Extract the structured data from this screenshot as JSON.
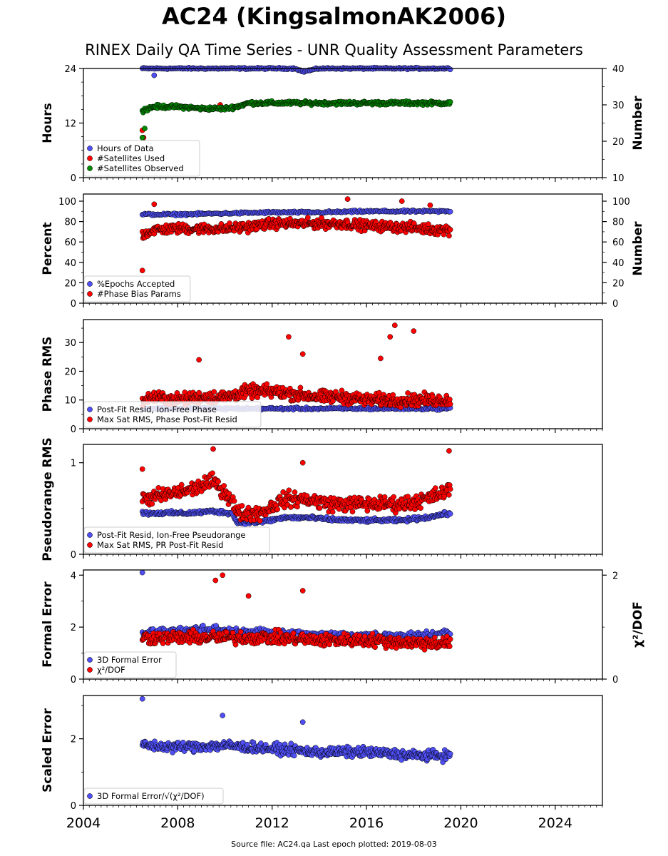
{
  "figure": {
    "title": "AC24 (KingsalmonAK2006)",
    "subtitle": "RINEX Daily QA Time Series - UNR Quality Assessment Parameters",
    "source": "Source file: AC24.qa Last epoch plotted: 2019-08-03"
  },
  "colors": {
    "blue": "#4f4ff5",
    "red": "#ff0000",
    "green": "#008a00"
  },
  "chart_data": [
    {
      "type": "scatter",
      "ylabel": "Hours",
      "ylabel_right": "Number",
      "ylim": [
        0,
        24
      ],
      "yticks": [
        0,
        12,
        24
      ],
      "ylim_right": [
        10,
        40
      ],
      "yticks_right": [
        10,
        20,
        30,
        40
      ],
      "legend": "lower-left",
      "series": [
        {
          "name": "Hours of Data",
          "color": "blue",
          "axis": "left",
          "x": [
            2006.5,
            2007.0,
            2008.0,
            2009.0,
            2010.0,
            2011.0,
            2012.0,
            2013.0,
            2013.3,
            2014.0,
            2015.0,
            2016.0,
            2017.0,
            2018.0,
            2019.0,
            2019.55
          ],
          "y": [
            24,
            24,
            24,
            24,
            24,
            24,
            24,
            24,
            23.3,
            24,
            24,
            24,
            24,
            24,
            24,
            24
          ],
          "outliers": [
            [
              2007.0,
              22.5
            ]
          ]
        },
        {
          "name": "#Satellites Used",
          "color": "red",
          "axis": "right",
          "x": [
            2006.5,
            2006.55,
            2009.8
          ],
          "y": [
            23,
            21,
            30
          ]
        },
        {
          "name": "#Satellites Observed",
          "color": "green",
          "axis": "right",
          "x": [
            2006.5,
            2007.0,
            2008.0,
            2009.0,
            2010.0,
            2010.5,
            2011.0,
            2012.0,
            2013.0,
            2014.0,
            2015.0,
            2016.0,
            2017.0,
            2018.0,
            2019.0,
            2019.55
          ],
          "y": [
            28.5,
            29.5,
            29.5,
            29,
            29,
            29.5,
            30.5,
            30.5,
            30.5,
            30.5,
            30.5,
            30.5,
            30.5,
            30.5,
            30.5,
            30.5
          ],
          "outliers": [
            [
              2006.5,
              21
            ],
            [
              2006.6,
              23.5
            ]
          ]
        }
      ]
    },
    {
      "type": "scatter",
      "ylabel": "Percent",
      "ylabel_right": "Number",
      "ylim": [
        0,
        107
      ],
      "yticks": [
        0,
        20,
        40,
        60,
        80,
        100
      ],
      "ylim_right": [
        0,
        107
      ],
      "yticks_right": [
        0,
        20,
        40,
        60,
        80,
        100
      ],
      "legend": "lower-left",
      "series": [
        {
          "name": "%Epochs Accepted",
          "color": "blue",
          "x": [
            2006.5,
            2008.0,
            2010.0,
            2012.0,
            2014.0,
            2016.0,
            2018.0,
            2019.55
          ],
          "y": [
            87,
            87,
            88,
            89,
            89,
            90,
            90,
            90
          ]
        },
        {
          "name": "#Phase Bias Params",
          "color": "red",
          "x": [
            2006.5,
            2007.0,
            2008.0,
            2009.0,
            2010.0,
            2011.0,
            2012.0,
            2013.0,
            2014.0,
            2015.0,
            2016.0,
            2017.0,
            2018.0,
            2019.0,
            2019.55
          ],
          "y": [
            67,
            72,
            73,
            73,
            73,
            75,
            78,
            78,
            78,
            78,
            76,
            75,
            74,
            72,
            72
          ],
          "outliers": [
            [
              2006.5,
              32
            ],
            [
              2007.0,
              97
            ],
            [
              2015.2,
              102
            ],
            [
              2017.5,
              100
            ],
            [
              2018.7,
              96
            ]
          ]
        }
      ]
    },
    {
      "type": "scatter",
      "ylabel": "Phase RMS",
      "ylim": [
        0,
        38
      ],
      "yticks": [
        0,
        10,
        20,
        30
      ],
      "legend": "lower-left",
      "series": [
        {
          "name": "Post-Fit Resid, Ion-Free Phase",
          "color": "blue",
          "x": [
            2006.5,
            2008.0,
            2010.0,
            2012.0,
            2014.0,
            2016.0,
            2018.0,
            2019.55
          ],
          "y": [
            7,
            7,
            7,
            7,
            7,
            7,
            7,
            7
          ]
        },
        {
          "name": "Max Sat RMS, Phase Post-Fit Resid",
          "color": "red",
          "x": [
            2006.5,
            2007.0,
            2008.0,
            2009.0,
            2010.0,
            2011.0,
            2012.0,
            2013.0,
            2014.0,
            2015.0,
            2016.0,
            2017.0,
            2018.0,
            2019.0,
            2019.55
          ],
          "y": [
            10,
            11,
            10,
            11,
            11,
            13,
            13,
            12,
            11,
            11,
            10,
            10,
            10,
            10,
            10
          ],
          "outliers": [
            [
              2012.7,
              32
            ],
            [
              2013.3,
              26
            ],
            [
              2017.2,
              36
            ],
            [
              2017.0,
              32
            ],
            [
              2018.0,
              34
            ],
            [
              2016.6,
              24.5
            ],
            [
              2008.9,
              24
            ]
          ]
        }
      ]
    },
    {
      "type": "scatter",
      "ylabel": "Pseudorange RMS",
      "ylim": [
        0,
        1.2
      ],
      "yticks": [
        0,
        1
      ],
      "legend": "lower-left",
      "series": [
        {
          "name": "Post-Fit Resid, Ion-Free Pseudorange",
          "color": "blue",
          "x": [
            2006.5,
            2007.5,
            2008.5,
            2009.5,
            2010.3,
            2010.5,
            2011.5,
            2012.5,
            2013.5,
            2014.5,
            2015.5,
            2016.5,
            2017.5,
            2018.5,
            2019.55
          ],
          "y": [
            0.45,
            0.45,
            0.45,
            0.47,
            0.45,
            0.35,
            0.35,
            0.4,
            0.4,
            0.38,
            0.37,
            0.37,
            0.37,
            0.4,
            0.45
          ]
        },
        {
          "name": "Max Sat RMS, PR Post-Fit Resid",
          "color": "red",
          "x": [
            2006.5,
            2007.5,
            2008.5,
            2009.5,
            2010.3,
            2010.5,
            2011.5,
            2012.5,
            2013.5,
            2014.5,
            2015.5,
            2016.5,
            2017.5,
            2018.5,
            2019.55
          ],
          "y": [
            0.6,
            0.65,
            0.7,
            0.8,
            0.6,
            0.45,
            0.45,
            0.6,
            0.6,
            0.55,
            0.55,
            0.55,
            0.55,
            0.6,
            0.7
          ],
          "outliers": [
            [
              2006.5,
              0.93
            ],
            [
              2009.5,
              1.15
            ],
            [
              2013.3,
              1.0
            ],
            [
              2019.5,
              1.13
            ]
          ]
        }
      ]
    },
    {
      "type": "scatter",
      "ylabel": "Formal Error",
      "ylabel_right": "χ²/DOF",
      "ylim": [
        0,
        4.2
      ],
      "yticks": [
        0,
        2,
        4
      ],
      "ylim_right": [
        0,
        2.1
      ],
      "yticks_right": [
        0,
        2
      ],
      "legend": "lower-left",
      "series": [
        {
          "name": "3D Formal Error",
          "color": "blue",
          "axis": "left",
          "x": [
            2006.5,
            2008.0,
            2010.0,
            2012.0,
            2014.0,
            2016.0,
            2018.0,
            2019.55
          ],
          "y": [
            1.8,
            1.9,
            1.9,
            1.8,
            1.7,
            1.7,
            1.7,
            1.8
          ],
          "outliers": [
            [
              2006.5,
              4.1
            ]
          ]
        },
        {
          "name": "χ²/DOF",
          "color": "red",
          "axis": "right",
          "x": [
            2006.5,
            2008.0,
            2010.0,
            2012.0,
            2014.0,
            2016.0,
            2018.0,
            2019.55
          ],
          "y": [
            0.8,
            0.8,
            0.8,
            0.8,
            0.75,
            0.75,
            0.7,
            0.7
          ],
          "outliers": [
            [
              2009.6,
              1.9
            ],
            [
              2009.9,
              2.0
            ],
            [
              2013.3,
              1.7
            ],
            [
              2011.0,
              1.6
            ]
          ]
        }
      ]
    },
    {
      "type": "scatter",
      "ylabel": "Scaled Error",
      "ylim": [
        0,
        3.3
      ],
      "yticks": [
        0,
        2
      ],
      "xlim": [
        2004,
        2026
      ],
      "xticks": [
        2004,
        2008,
        2012,
        2016,
        2020,
        2024
      ],
      "legend": "lower-left",
      "series": [
        {
          "name": "3D Formal Error/√(χ²/DOF)",
          "color": "blue",
          "x": [
            2006.5,
            2008.0,
            2010.0,
            2012.0,
            2014.0,
            2016.0,
            2018.0,
            2019.55
          ],
          "y": [
            1.8,
            1.75,
            1.8,
            1.7,
            1.6,
            1.6,
            1.5,
            1.5
          ],
          "outliers": [
            [
              2006.5,
              3.2
            ],
            [
              2009.9,
              2.7
            ],
            [
              2013.3,
              2.5
            ]
          ]
        }
      ]
    }
  ]
}
